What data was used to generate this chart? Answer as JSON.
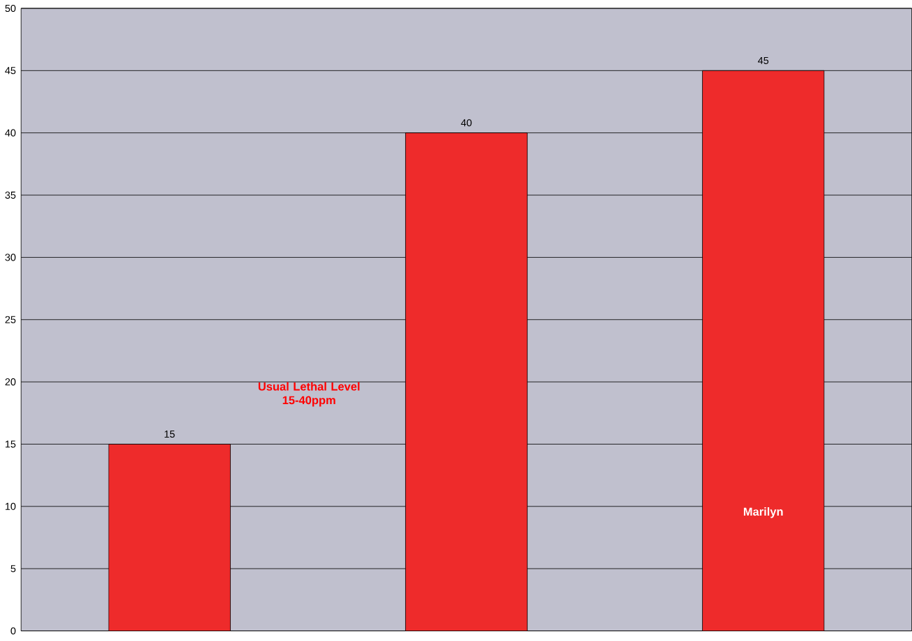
{
  "chart_data": {
    "type": "bar",
    "categories": [
      null,
      null,
      null
    ],
    "values": [
      15,
      40,
      45
    ],
    "color": "#ee2b2b",
    "ylim": [
      0,
      50
    ],
    "yticks": [
      0,
      5,
      10,
      15,
      20,
      25,
      30,
      35,
      40,
      45,
      50
    ],
    "grid": "y",
    "data_labels": true,
    "annotations": [
      "Usual Lethal Level\n15-40ppm",
      "Marilyn"
    ]
  }
}
